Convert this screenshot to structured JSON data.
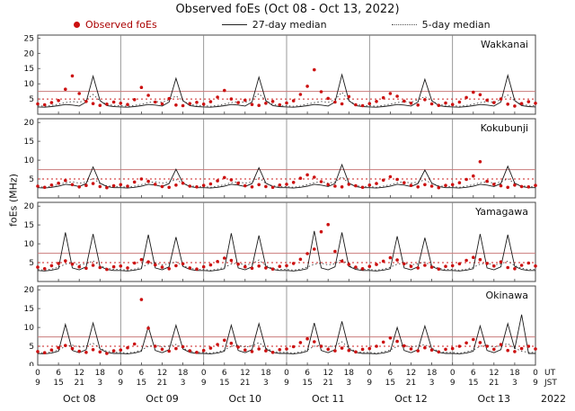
{
  "title": "Observed foEs (Oct 08 - Oct 13, 2022)",
  "legend": {
    "observed": "Observed foEs",
    "median27": "27-day median",
    "median5": "5-day median"
  },
  "axes": {
    "ylabel": "foEs (MHz)",
    "ut_label": "UT",
    "jst_label": "JST",
    "year_label": "2022",
    "day_labels": [
      "Oct 08",
      "Oct 09",
      "Oct 10",
      "Oct 11",
      "Oct 12",
      "Oct 13"
    ],
    "ut_ticks": [
      0,
      6,
      12,
      18
    ],
    "jst_ticks": [
      9,
      15,
      21,
      3
    ]
  },
  "chart_data": {
    "type": "scatter",
    "x_unit": "hours from Oct 08 00:00 UT",
    "x_range": [
      0,
      144
    ],
    "t_step_hours": 2,
    "grid": "day-boundary vertical lines only",
    "legend_position": "top",
    "thresholds": {
      "solid_red_mhz": 7.5,
      "dotted_red_mhz": 5.0
    },
    "colors": {
      "observed": "#cc1111",
      "median27": "#1a1a1a",
      "median5": "#444444",
      "threshold_solid": "#c97b7b",
      "threshold_dotted": "#cc2222",
      "day_lines": "#808080",
      "frame": "#444444"
    },
    "panels": [
      {
        "station": "Wakkanai",
        "ylim": [
          0,
          26
        ],
        "yticks": [
          5,
          10,
          15,
          20,
          25
        ],
        "observed": [
          3.4,
          3.1,
          3.8,
          4.5,
          8.2,
          12.6,
          6.8,
          4.2,
          3.5,
          2.9,
          3.3,
          4.0,
          3.6,
          3.2,
          4.8,
          8.8,
          6.2,
          4.0,
          3.4,
          5.1,
          3.0,
          2.8,
          3.5,
          3.9,
          3.3,
          4.1,
          5.6,
          7.8,
          5.0,
          3.8,
          4.6,
          3.2,
          2.9,
          3.6,
          4.2,
          3.1,
          3.7,
          4.4,
          6.5,
          9.2,
          14.6,
          7.4,
          5.2,
          4.0,
          3.4,
          5.8,
          3.1,
          2.8,
          3.5,
          4.2,
          5.4,
          6.8,
          5.9,
          4.3,
          3.6,
          3.0,
          4.8,
          3.4,
          2.9,
          3.7,
          3.2,
          4.0,
          5.5,
          7.2,
          6.4,
          4.6,
          3.8,
          5.0,
          3.3,
          2.7,
          3.5,
          4.1,
          3.6
        ],
        "median27": [
          2.4,
          2.3,
          2.5,
          2.8,
          3.2,
          3.0,
          2.7,
          4.0,
          12.5,
          4.5,
          2.8,
          2.5,
          2.4,
          2.3,
          2.5,
          2.8,
          3.2,
          3.0,
          2.7,
          4.0,
          11.8,
          4.5,
          2.8,
          2.5,
          2.4,
          2.3,
          2.5,
          2.8,
          3.2,
          3.0,
          2.7,
          4.0,
          12.2,
          4.5,
          2.8,
          2.5,
          2.4,
          2.3,
          2.5,
          2.8,
          3.2,
          3.0,
          2.7,
          4.0,
          13.0,
          4.5,
          2.8,
          2.5,
          2.4,
          2.3,
          2.5,
          2.8,
          3.2,
          3.0,
          2.7,
          4.0,
          11.5,
          4.5,
          2.8,
          2.5,
          2.4,
          2.3,
          2.5,
          2.8,
          3.2,
          3.0,
          2.7,
          4.0,
          12.8,
          4.5,
          2.8,
          2.5,
          2.4
        ],
        "median5": [
          2.8,
          2.6,
          2.9,
          3.3,
          3.8,
          4.2,
          3.9,
          4.8,
          6.5,
          4.4,
          3.2,
          2.9,
          2.8,
          2.6,
          2.9,
          3.3,
          3.8,
          4.2,
          3.9,
          4.8,
          6.0,
          4.4,
          3.2,
          2.9,
          2.8,
          2.6,
          2.9,
          3.3,
          3.8,
          4.2,
          3.9,
          4.8,
          6.8,
          4.4,
          3.2,
          2.9,
          2.8,
          2.6,
          2.9,
          3.3,
          3.8,
          4.2,
          3.9,
          4.8,
          7.2,
          4.4,
          3.2,
          2.9,
          2.8,
          2.6,
          2.9,
          3.3,
          3.8,
          4.2,
          3.9,
          4.8,
          5.8,
          4.4,
          3.2,
          2.9,
          2.8,
          2.6,
          2.9,
          3.3,
          3.8,
          4.2,
          3.9,
          4.8,
          6.3,
          4.4,
          3.2,
          2.9,
          2.8
        ]
      },
      {
        "station": "Kokubunji",
        "ylim": [
          0,
          21
        ],
        "yticks": [
          5,
          10,
          15,
          20
        ],
        "observed": [
          3.1,
          2.8,
          3.4,
          3.9,
          4.6,
          3.5,
          2.9,
          3.3,
          3.8,
          3.0,
          2.7,
          3.2,
          3.5,
          3.1,
          4.2,
          5.0,
          4.4,
          3.6,
          3.0,
          2.8,
          3.4,
          3.9,
          3.1,
          2.9,
          3.3,
          3.7,
          4.5,
          5.4,
          4.8,
          3.9,
          3.2,
          2.9,
          3.5,
          3.0,
          2.8,
          3.4,
          3.6,
          4.1,
          5.2,
          6.1,
          5.5,
          4.3,
          3.5,
          3.1,
          2.9,
          3.6,
          3.2,
          2.8,
          3.4,
          3.8,
          4.7,
          5.6,
          4.9,
          4.0,
          3.3,
          2.9,
          3.5,
          3.1,
          2.7,
          3.3,
          3.5,
          4.0,
          4.9,
          5.8,
          9.6,
          4.4,
          3.6,
          3.2,
          2.8,
          3.4,
          3.0,
          2.9,
          3.3
        ],
        "median27": [
          2.7,
          2.6,
          2.8,
          3.1,
          3.6,
          3.4,
          3.0,
          3.8,
          8.2,
          3.9,
          3.0,
          2.7,
          2.7,
          2.6,
          2.8,
          3.1,
          3.6,
          3.4,
          3.0,
          3.8,
          7.6,
          3.9,
          3.0,
          2.7,
          2.7,
          2.6,
          2.8,
          3.1,
          3.6,
          3.4,
          3.0,
          3.8,
          8.0,
          3.9,
          3.0,
          2.7,
          2.7,
          2.6,
          2.8,
          3.1,
          3.6,
          3.4,
          3.0,
          3.8,
          8.8,
          3.9,
          3.0,
          2.7,
          2.7,
          2.6,
          2.8,
          3.1,
          3.6,
          3.4,
          3.0,
          3.8,
          7.4,
          3.9,
          3.0,
          2.7,
          2.7,
          2.6,
          2.8,
          3.1,
          3.6,
          3.4,
          3.0,
          3.8,
          8.4,
          3.9,
          3.0,
          2.7,
          2.7
        ],
        "median5": [
          3.0,
          2.8,
          3.1,
          3.5,
          4.0,
          4.3,
          3.9,
          4.2,
          5.2,
          3.8,
          3.2,
          3.0,
          3.0,
          2.8,
          3.1,
          3.5,
          4.0,
          4.3,
          3.9,
          4.2,
          4.9,
          3.8,
          3.2,
          3.0,
          3.0,
          2.8,
          3.1,
          3.5,
          4.0,
          4.3,
          3.9,
          4.2,
          5.4,
          3.8,
          3.2,
          3.0,
          3.0,
          2.8,
          3.1,
          3.5,
          4.0,
          4.3,
          3.9,
          4.2,
          5.6,
          3.8,
          3.2,
          3.0,
          3.0,
          2.8,
          3.1,
          3.5,
          4.0,
          4.3,
          3.9,
          4.2,
          4.8,
          3.8,
          3.2,
          3.0,
          3.0,
          2.8,
          3.1,
          3.5,
          4.0,
          4.3,
          3.9,
          4.2,
          5.1,
          3.8,
          3.2,
          3.0,
          3.0
        ]
      },
      {
        "station": "Yamagawa",
        "ylim": [
          0,
          21
        ],
        "yticks": [
          5,
          10,
          15,
          20
        ],
        "observed": [
          3.8,
          3.4,
          4.2,
          4.8,
          5.5,
          4.6,
          3.9,
          3.5,
          4.3,
          3.7,
          3.2,
          3.9,
          4.1,
          3.6,
          4.9,
          5.8,
          5.2,
          4.4,
          3.8,
          3.4,
          4.2,
          4.7,
          3.6,
          3.3,
          3.9,
          4.4,
          5.3,
          6.2,
          5.6,
          4.6,
          3.9,
          3.5,
          4.1,
          3.6,
          3.3,
          4.0,
          4.2,
          4.8,
          5.9,
          7.4,
          8.6,
          13.2,
          15.1,
          8.0,
          5.4,
          4.5,
          3.8,
          3.4,
          4.0,
          4.5,
          5.4,
          6.3,
          5.7,
          4.7,
          4.0,
          3.6,
          4.3,
          3.8,
          3.3,
          4.0,
          4.2,
          4.7,
          5.6,
          6.4,
          5.8,
          4.8,
          4.1,
          5.2,
          3.7,
          3.4,
          4.3,
          4.9,
          4.1
        ],
        "median27": [
          2.9,
          2.8,
          3.0,
          3.4,
          13.0,
          3.6,
          3.1,
          3.9,
          12.6,
          4.0,
          3.2,
          2.9,
          2.9,
          2.8,
          3.0,
          3.4,
          12.4,
          3.6,
          3.1,
          3.9,
          11.8,
          4.0,
          3.2,
          2.9,
          2.9,
          2.8,
          3.0,
          3.4,
          12.8,
          3.6,
          3.1,
          3.9,
          12.2,
          4.0,
          3.2,
          2.9,
          2.9,
          2.8,
          3.0,
          3.4,
          13.4,
          3.6,
          3.1,
          3.9,
          13.0,
          4.0,
          3.2,
          2.9,
          2.9,
          2.8,
          3.0,
          3.4,
          12.0,
          3.6,
          3.1,
          3.9,
          11.6,
          4.0,
          3.2,
          2.9,
          2.9,
          2.8,
          3.0,
          3.4,
          12.6,
          3.6,
          3.1,
          3.9,
          12.4,
          4.0,
          3.2,
          2.9,
          2.9
        ],
        "median5": [
          3.2,
          3.0,
          3.3,
          3.8,
          4.6,
          4.9,
          4.4,
          4.7,
          5.5,
          4.2,
          3.5,
          3.2,
          3.2,
          3.0,
          3.3,
          3.8,
          4.6,
          4.9,
          4.4,
          4.7,
          5.2,
          4.2,
          3.5,
          3.2,
          3.2,
          3.0,
          3.3,
          3.8,
          4.6,
          4.9,
          4.4,
          4.7,
          5.7,
          4.2,
          3.5,
          3.2,
          3.2,
          3.0,
          3.3,
          3.8,
          4.6,
          4.9,
          4.4,
          4.7,
          6.0,
          4.2,
          3.5,
          3.2,
          3.2,
          3.0,
          3.3,
          3.8,
          4.6,
          4.9,
          4.4,
          4.7,
          5.1,
          4.2,
          3.5,
          3.2,
          3.2,
          3.0,
          3.3,
          3.8,
          4.6,
          4.9,
          4.4,
          4.7,
          5.4,
          4.2,
          3.5,
          3.2,
          3.2
        ]
      },
      {
        "station": "Okinawa",
        "ylim": [
          0,
          21
        ],
        "yticks": [
          0,
          5,
          10,
          15,
          20
        ],
        "observed": [
          3.6,
          3.3,
          4.0,
          4.6,
          5.2,
          4.4,
          3.7,
          3.4,
          4.1,
          3.5,
          3.1,
          3.8,
          4.0,
          4.6,
          5.6,
          17.4,
          9.8,
          5.0,
          4.2,
          3.7,
          4.4,
          4.9,
          3.8,
          3.4,
          3.9,
          4.5,
          5.5,
          6.6,
          5.8,
          4.8,
          4.0,
          3.6,
          4.3,
          3.8,
          3.4,
          4.1,
          4.3,
          4.9,
          6.0,
          7.0,
          6.2,
          5.0,
          4.2,
          3.8,
          4.5,
          3.9,
          3.5,
          4.2,
          4.4,
          5.0,
          6.1,
          7.2,
          6.3,
          5.1,
          4.3,
          3.8,
          4.6,
          4.0,
          3.5,
          4.2,
          4.4,
          5.0,
          5.9,
          6.8,
          6.0,
          5.0,
          4.2,
          5.5,
          3.9,
          3.6,
          4.4,
          5.0,
          4.3
        ],
        "median27": [
          3.1,
          3.0,
          3.2,
          3.7,
          10.8,
          3.9,
          3.3,
          4.1,
          11.2,
          4.3,
          3.4,
          3.1,
          3.1,
          3.0,
          3.2,
          3.7,
          10.2,
          3.9,
          3.3,
          4.1,
          10.6,
          4.3,
          3.4,
          3.1,
          3.1,
          3.0,
          3.2,
          3.7,
          10.6,
          3.9,
          3.3,
          4.1,
          11.0,
          4.3,
          3.4,
          3.1,
          3.1,
          3.0,
          3.2,
          3.7,
          11.2,
          3.9,
          3.3,
          4.1,
          11.6,
          4.3,
          3.4,
          3.1,
          3.1,
          3.0,
          3.2,
          3.7,
          10.0,
          3.9,
          3.3,
          4.1,
          10.4,
          4.3,
          3.4,
          3.1,
          3.1,
          3.0,
          3.2,
          3.7,
          10.4,
          3.9,
          3.3,
          4.1,
          11.0,
          4.3,
          13.4,
          3.1,
          3.1
        ],
        "median5": [
          3.4,
          3.2,
          3.5,
          4.0,
          5.0,
          5.3,
          4.8,
          5.1,
          5.8,
          4.5,
          3.7,
          3.4,
          3.4,
          3.2,
          3.5,
          4.0,
          5.0,
          5.3,
          4.8,
          5.1,
          5.5,
          4.5,
          3.7,
          3.4,
          3.4,
          3.2,
          3.5,
          4.0,
          5.0,
          5.3,
          4.8,
          5.1,
          6.0,
          4.5,
          3.7,
          3.4,
          3.4,
          3.2,
          3.5,
          4.0,
          5.0,
          5.3,
          4.8,
          5.1,
          6.2,
          4.5,
          3.7,
          3.4,
          3.4,
          3.2,
          3.5,
          4.0,
          5.0,
          5.3,
          4.8,
          5.1,
          5.4,
          4.5,
          3.7,
          3.4,
          3.4,
          3.2,
          3.5,
          4.0,
          5.0,
          5.3,
          4.8,
          5.1,
          5.7,
          4.5,
          3.7,
          3.4,
          3.4
        ]
      }
    ]
  }
}
